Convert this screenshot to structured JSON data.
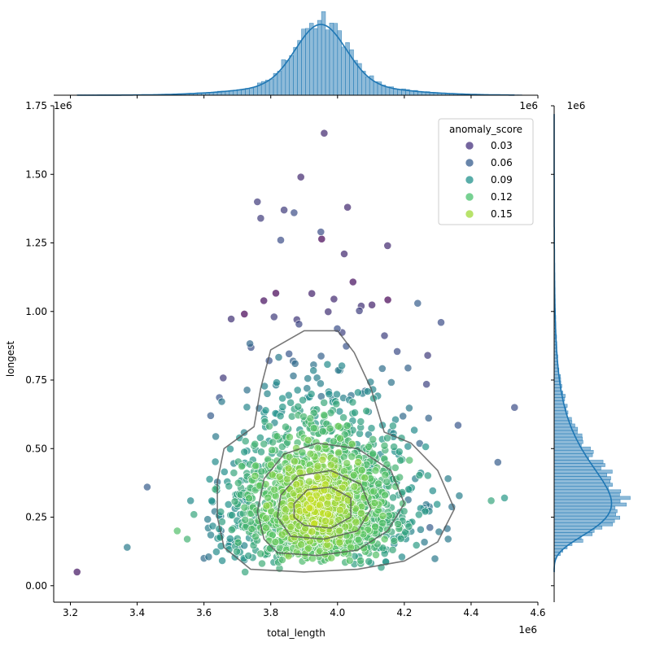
{
  "chart_data": {
    "type": "scatter",
    "title": "",
    "xlabel": "total_length",
    "ylabel": "longest",
    "x_offset_label": "1e6",
    "y_offset_label": "1e6",
    "marginal_x_offset_label": "1e6",
    "marginal_y_offset_label": "1e6",
    "xlim": [
      3.15,
      4.6
    ],
    "ylim": [
      -0.06,
      1.75
    ],
    "x_ticks": [
      3.2,
      3.4,
      3.6,
      3.8,
      4.0,
      4.2,
      4.4,
      4.6
    ],
    "x_tick_labels": [
      "3.2",
      "3.4",
      "3.6",
      "3.8",
      "4.0",
      "4.2",
      "4.4",
      "4.6"
    ],
    "y_ticks": [
      0.0,
      0.25,
      0.5,
      0.75,
      1.0,
      1.25,
      1.5,
      1.75
    ],
    "y_tick_labels": [
      "0.00",
      "0.25",
      "0.50",
      "0.75",
      "1.00",
      "1.25",
      "1.50",
      "1.75"
    ],
    "legend": {
      "title": "anomaly_score",
      "placement": "top-right",
      "entries": [
        {
          "label": "0.03",
          "color": "#46327e"
        },
        {
          "label": "0.06",
          "color": "#365c8d"
        },
        {
          "label": "0.09",
          "color": "#21918c"
        },
        {
          "label": "0.12",
          "color": "#4ac16d"
        },
        {
          "label": "0.15",
          "color": "#a0da39"
        }
      ]
    },
    "grid": false,
    "cluster": {
      "center_x": 3.94,
      "center_y": 0.31,
      "n_points": 1700
    },
    "kde_contours": [
      {
        "level": 1,
        "points": [
          [
            3.74,
            0.06
          ],
          [
            3.9,
            0.05
          ],
          [
            4.06,
            0.06
          ],
          [
            4.2,
            0.09
          ],
          [
            4.3,
            0.16
          ],
          [
            4.35,
            0.28
          ],
          [
            4.3,
            0.42
          ],
          [
            4.22,
            0.52
          ],
          [
            4.14,
            0.56
          ],
          [
            4.1,
            0.72
          ],
          [
            4.05,
            0.85
          ],
          [
            4.0,
            0.93
          ],
          [
            3.9,
            0.93
          ],
          [
            3.8,
            0.86
          ],
          [
            3.77,
            0.72
          ],
          [
            3.75,
            0.58
          ],
          [
            3.66,
            0.5
          ],
          [
            3.64,
            0.38
          ],
          [
            3.64,
            0.25
          ],
          [
            3.66,
            0.14
          ]
        ]
      },
      {
        "level": 2,
        "points": [
          [
            3.82,
            0.12
          ],
          [
            3.94,
            0.11
          ],
          [
            4.06,
            0.13
          ],
          [
            4.15,
            0.2
          ],
          [
            4.2,
            0.3
          ],
          [
            4.16,
            0.42
          ],
          [
            4.06,
            0.5
          ],
          [
            3.94,
            0.52
          ],
          [
            3.84,
            0.48
          ],
          [
            3.78,
            0.39
          ],
          [
            3.76,
            0.27
          ],
          [
            3.78,
            0.17
          ]
        ]
      },
      {
        "level": 3,
        "points": [
          [
            3.86,
            0.18
          ],
          [
            3.96,
            0.17
          ],
          [
            4.06,
            0.2
          ],
          [
            4.1,
            0.28
          ],
          [
            4.07,
            0.37
          ],
          [
            3.98,
            0.42
          ],
          [
            3.88,
            0.4
          ],
          [
            3.83,
            0.33
          ],
          [
            3.82,
            0.25
          ]
        ]
      },
      {
        "level": 4,
        "points": [
          [
            3.9,
            0.22
          ],
          [
            3.98,
            0.21
          ],
          [
            4.04,
            0.25
          ],
          [
            4.04,
            0.32
          ],
          [
            3.98,
            0.36
          ],
          [
            3.91,
            0.35
          ],
          [
            3.87,
            0.3
          ],
          [
            3.87,
            0.25
          ]
        ]
      }
    ],
    "outliers": [
      {
        "x": 3.22,
        "y": 0.05,
        "score": 0.01
      },
      {
        "x": 3.37,
        "y": 0.14,
        "score": 0.07
      },
      {
        "x": 3.43,
        "y": 0.36,
        "score": 0.05
      },
      {
        "x": 3.52,
        "y": 0.2,
        "score": 0.12
      },
      {
        "x": 3.55,
        "y": 0.17,
        "score": 0.11
      },
      {
        "x": 3.57,
        "y": 0.26,
        "score": 0.1
      },
      {
        "x": 3.6,
        "y": 0.1,
        "score": 0.06
      },
      {
        "x": 3.56,
        "y": 0.31,
        "score": 0.08
      },
      {
        "x": 3.62,
        "y": 0.62,
        "score": 0.05
      },
      {
        "x": 3.96,
        "y": 1.65,
        "score": 0.02
      },
      {
        "x": 3.89,
        "y": 1.49,
        "score": 0.02
      },
      {
        "x": 3.76,
        "y": 1.4,
        "score": 0.03
      },
      {
        "x": 3.84,
        "y": 1.37,
        "score": 0.03
      },
      {
        "x": 4.03,
        "y": 1.38,
        "score": 0.02
      },
      {
        "x": 3.77,
        "y": 1.34,
        "score": 0.03
      },
      {
        "x": 3.87,
        "y": 1.36,
        "score": 0.04
      },
      {
        "x": 4.15,
        "y": 1.24,
        "score": 0.02
      },
      {
        "x": 4.48,
        "y": 0.45,
        "score": 0.05
      },
      {
        "x": 4.5,
        "y": 0.32,
        "score": 0.09
      },
      {
        "x": 4.53,
        "y": 0.65,
        "score": 0.04
      },
      {
        "x": 4.46,
        "y": 0.31,
        "score": 0.1
      },
      {
        "x": 4.31,
        "y": 0.96,
        "score": 0.04
      },
      {
        "x": 4.24,
        "y": 1.03,
        "score": 0.05
      },
      {
        "x": 4.27,
        "y": 0.84,
        "score": 0.03
      },
      {
        "x": 3.83,
        "y": 1.26,
        "score": 0.04
      },
      {
        "x": 3.95,
        "y": 1.29,
        "score": 0.04
      },
      {
        "x": 4.02,
        "y": 1.21,
        "score": 0.02
      }
    ],
    "marginal_x_hist": {
      "bin_edges_start": 3.15,
      "bin_width": 0.012,
      "counts_description": "unimodal density peaking near 3.95",
      "peak": 1.0
    },
    "marginal_y_hist": {
      "counts_description": "unimodal density peaking near 0.31",
      "peak": 1.0
    }
  }
}
